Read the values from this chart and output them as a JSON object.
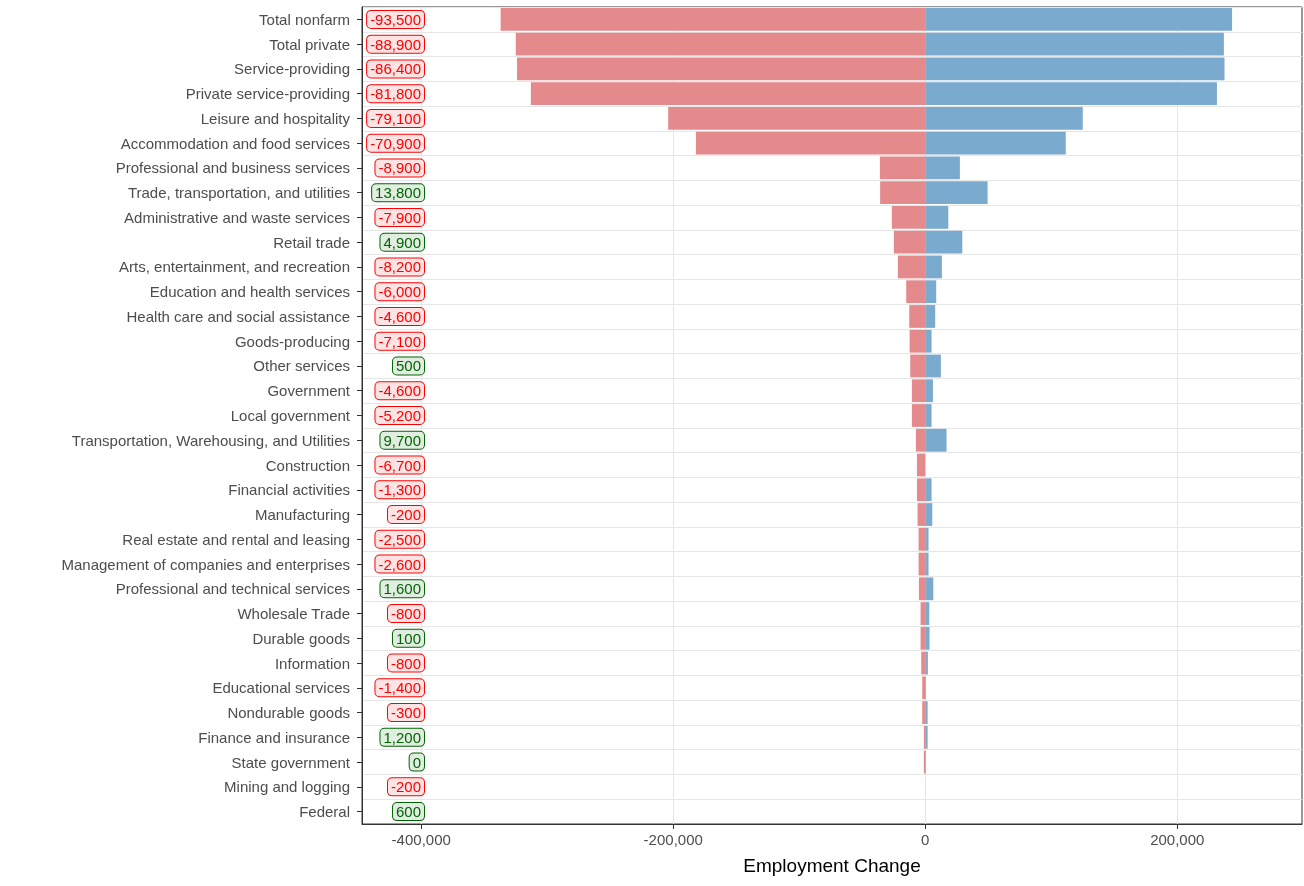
{
  "chart_data": {
    "type": "bar",
    "orientation": "horizontal",
    "xlabel": "Employment Change",
    "grid": true,
    "stacked": true,
    "categories": [
      "Total nonfarm",
      "Total private",
      "Service-providing",
      "Private service-providing",
      "Leisure and hospitality",
      "Accommodation and food services",
      "Professional and business services",
      "Trade, transportation, and utilities",
      "Administrative and waste services",
      "Retail trade",
      "Arts, entertainment, and recreation",
      "Education and health services",
      "Health care and social assistance",
      "Goods-producing",
      "Other services",
      "Government",
      "Local government",
      "Transportation, Warehousing, and Utilities",
      "Construction",
      "Financial activities",
      "Manufacturing",
      "Real estate and rental and leasing",
      "Management of companies and enterprises",
      "Professional and technical services",
      "Wholesale Trade",
      "Durable goods",
      "Information",
      "Educational services",
      "Nondurable goods",
      "Finance and insurance",
      "State government",
      "Mining and logging",
      "Federal"
    ],
    "xlim": [
      -447000,
      299000
    ],
    "xticks": [
      {
        "value": -400000,
        "label": "-400,000"
      },
      {
        "value": -200000,
        "label": "-200,000"
      },
      0,
      {
        "value": 200000,
        "label": "200,000"
      }
    ],
    "series": [
      {
        "color": "#e48a8c",
        "values": [
          -337000,
          -325000,
          -324000,
          -313000,
          -204000,
          -182000,
          -36000,
          -35800,
          -26500,
          -24900,
          -21700,
          -15100,
          -12700,
          -12400,
          -11900,
          -10600,
          -10600,
          -7400,
          -6600,
          -6600,
          -6100,
          -5300,
          -5300,
          -5000,
          -3700,
          -3700,
          -3200,
          -2400,
          -2400,
          -1100,
          -1100,
          null,
          null
        ]
      },
      {
        "color": "#7aaacd",
        "values": [
          243500,
          237000,
          237500,
          231500,
          125000,
          111500,
          27500,
          49500,
          18300,
          29400,
          13200,
          8700,
          7900,
          5000,
          12400,
          6100,
          5000,
          16900,
          0,
          5000,
          5600,
          2600,
          2600,
          6400,
          3200,
          3400,
          2100,
          500,
          1900,
          1900,
          500,
          null,
          null
        ]
      }
    ],
    "annotations": [
      "-93,500",
      "-88,900",
      "-86,400",
      "-81,800",
      "-79,100",
      "-70,900",
      "-8,900",
      "13,800",
      "-7,900",
      "4,900",
      "-8,200",
      "-6,000",
      "-4,600",
      "-7,100",
      "500",
      "-4,600",
      "-5,200",
      "9,700",
      "-6,700",
      "-1,300",
      "-200",
      "-2,500",
      "-2,600",
      "1,600",
      "-800",
      "100",
      "-800",
      "-1,400",
      "-300",
      "1,200",
      "0",
      "-200",
      "600"
    ]
  }
}
